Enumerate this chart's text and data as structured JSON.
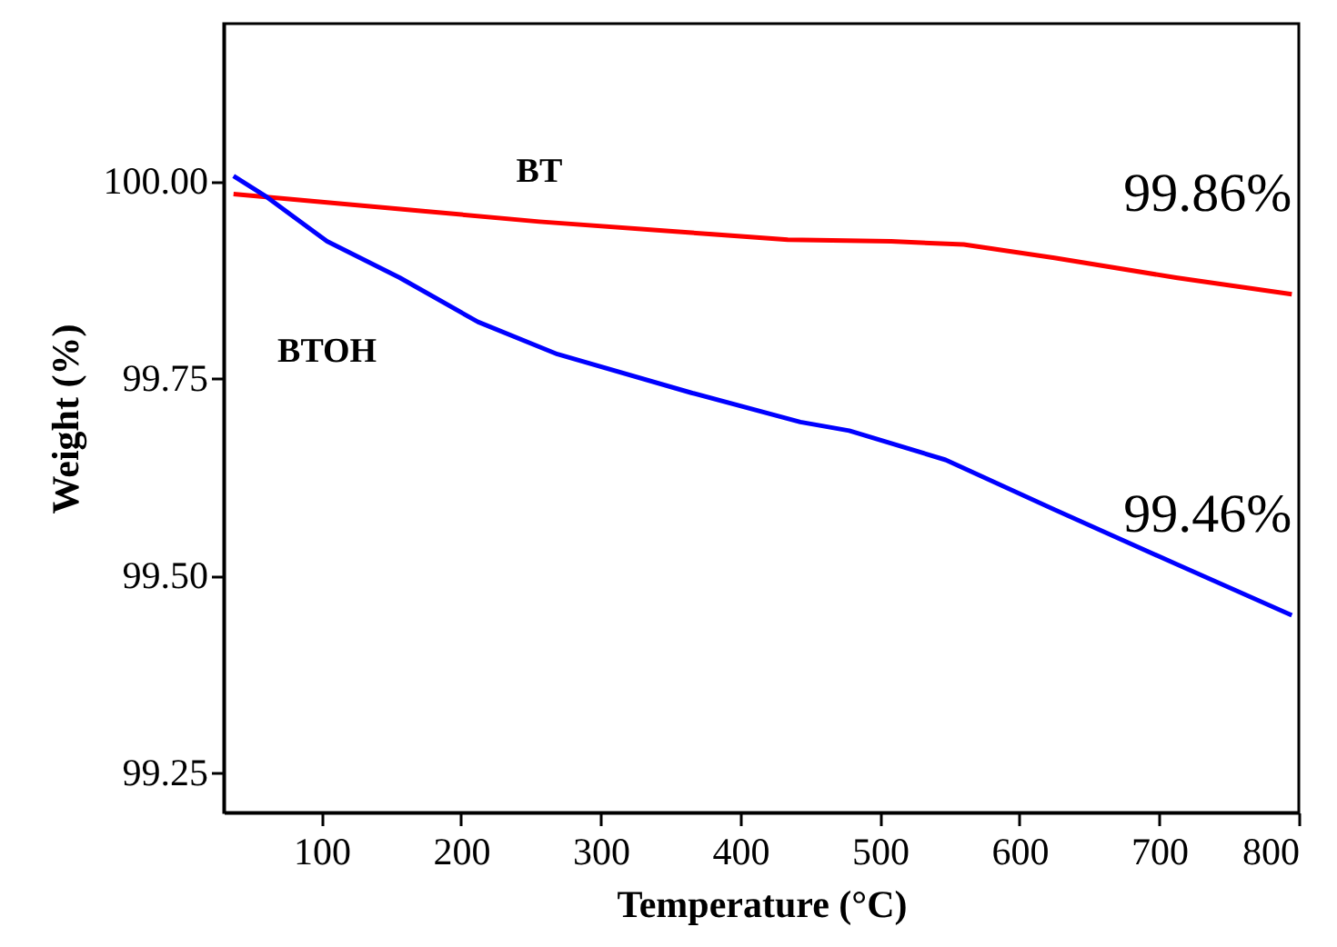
{
  "chart_data": {
    "type": "line",
    "xlabel": "Temperature (°C)",
    "ylabel": "Weight (%)",
    "xlim": [
      30,
      800
    ],
    "ylim": [
      99.2,
      100.2
    ],
    "xticks": [
      100,
      200,
      300,
      400,
      500,
      600,
      700,
      800
    ],
    "yticks": [
      {
        "value": 99.25,
        "label": "99.25"
      },
      {
        "value": 99.5,
        "label": "99.50"
      },
      {
        "value": 99.75,
        "label": "99.75"
      },
      {
        "value": 100,
        "label": "100.00"
      }
    ],
    "grid": false,
    "marker": "none",
    "line_style": "solid",
    "series": [
      {
        "name": "BT",
        "color": "#ff0000",
        "x": [
          37,
          169,
          256,
          365,
          434,
          508,
          560,
          625,
          712,
          795
        ],
        "values": [
          99.984,
          99.963,
          99.949,
          99.935,
          99.926,
          99.924,
          99.92,
          99.903,
          99.878,
          99.857
        ]
      },
      {
        "name": "BTOH",
        "color": "#0000ff",
        "x": [
          37,
          61,
          104,
          156,
          212,
          269,
          365,
          443,
          478,
          547,
          625,
          712,
          795
        ],
        "values": [
          100.007,
          99.98,
          99.924,
          99.878,
          99.822,
          99.781,
          99.732,
          99.695,
          99.684,
          99.647,
          99.584,
          99.515,
          99.45
        ]
      }
    ],
    "annotations": [
      "99.86%",
      "99.46%"
    ]
  }
}
